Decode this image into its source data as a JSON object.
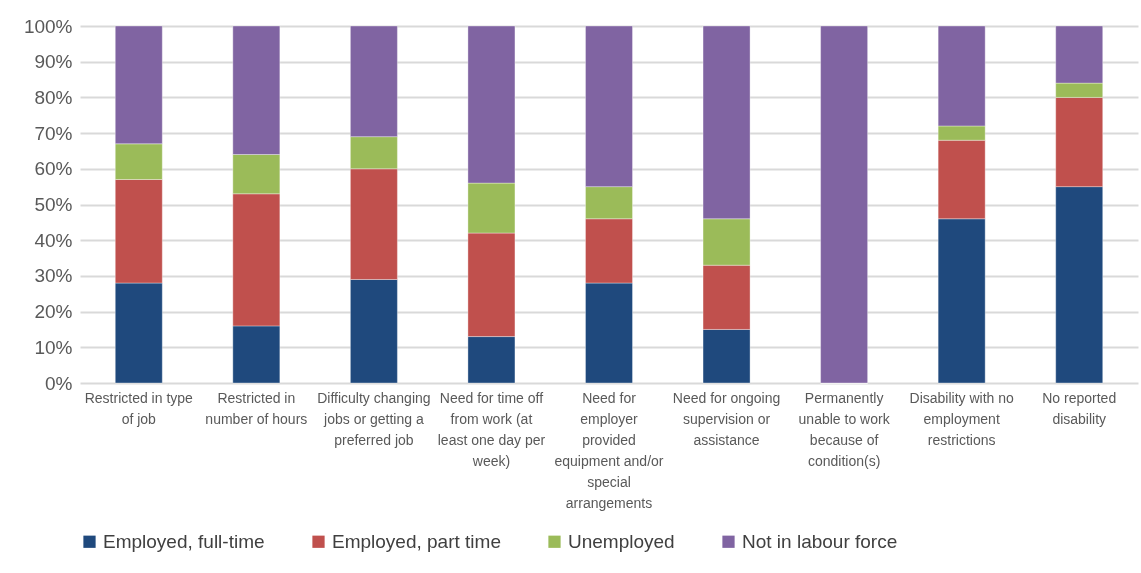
{
  "chart_data": {
    "type": "bar",
    "stacked": true,
    "categories": [
      "Restricted in type of job",
      "Restricted in number of hours",
      "Difficulty changing jobs or getting a preferred job",
      "Need for time off from work (at least one day per week)",
      "Need for employer provided equipment and/or special arrangements",
      "Need for ongoing supervision or assistance",
      "Permanently unable to work because of condition(s)",
      "Disability with no employment restrictions",
      "No reported disability"
    ],
    "series": [
      {
        "name": "Employed, full-time",
        "color": "#1f497d",
        "values": [
          28,
          16,
          29,
          13,
          28,
          15,
          0,
          46,
          55
        ]
      },
      {
        "name": "Employed, part time",
        "color": "#c0504d",
        "values": [
          29,
          37,
          31,
          29,
          18,
          18,
          0,
          22,
          25
        ]
      },
      {
        "name": "Unemployed",
        "color": "#9bbb59",
        "values": [
          10,
          11,
          9,
          14,
          9,
          13,
          0,
          4,
          4
        ]
      },
      {
        "name": "Not in labour force",
        "color": "#8064a2",
        "values": [
          33,
          36,
          31,
          44,
          45,
          54,
          100,
          28,
          16
        ]
      }
    ],
    "ylim": [
      0,
      100
    ],
    "yticks": [
      {
        "value": 0,
        "label": "0%"
      },
      {
        "value": 10,
        "label": "10%"
      },
      {
        "value": 20,
        "label": "20%"
      },
      {
        "value": 30,
        "label": "30%"
      },
      {
        "value": 40,
        "label": "40%"
      },
      {
        "value": 50,
        "label": "50%"
      },
      {
        "value": 60,
        "label": "60%"
      },
      {
        "value": 70,
        "label": "70%"
      },
      {
        "value": 80,
        "label": "80%"
      },
      {
        "value": 90,
        "label": "90%"
      },
      {
        "value": 100,
        "label": "100%"
      }
    ],
    "grid": "y",
    "legend": "bottom"
  }
}
